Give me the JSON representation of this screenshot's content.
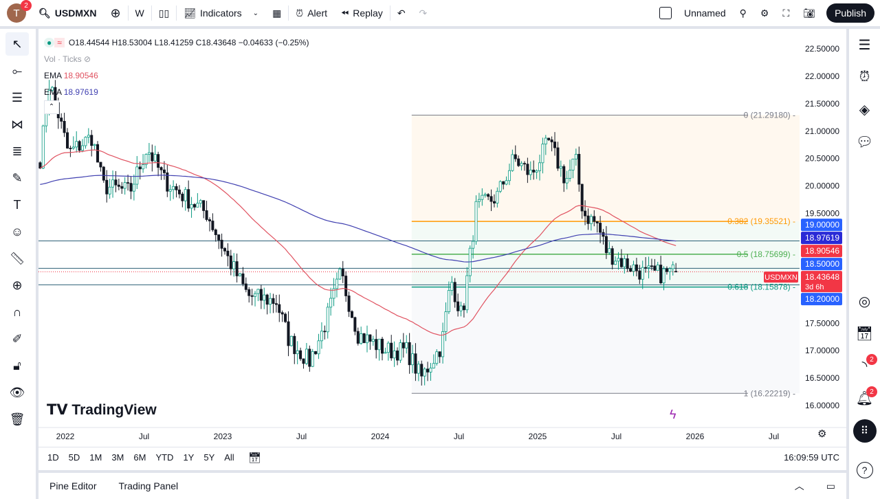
{
  "topbar": {
    "avatar_letter": "T",
    "avatar_badge": "2",
    "symbol": "USDMXN",
    "interval": "W",
    "indicators": "Indicators",
    "alert": "Alert",
    "replay": "Replay",
    "layout_name": "Unnamed",
    "publish": "Publish"
  },
  "legend": {
    "ohlc": "O18.44544 H18.53004 L18.41259 C18.43648 −0.04633 (−0.25%)",
    "vol": "Vol · Ticks",
    "ema1_label": "EMA",
    "ema1_value": "18.90546",
    "ema2_label": "EMA",
    "ema2_value": "18.97619"
  },
  "colors": {
    "up": "#089981",
    "down": "#131722",
    "ema_fast": "#e05260",
    "ema_slow": "#3f3fb0",
    "fib_0382": "#ff9800",
    "fib_05": "#4caf50",
    "fib_0618": "#089981"
  },
  "price_axis": {
    "ticks": [
      "22.50000",
      "22.00000",
      "21.50000",
      "21.00000",
      "20.50000",
      "20.00000",
      "19.50000",
      "17.50000",
      "17.00000",
      "16.50000",
      "16.00000"
    ],
    "labels": [
      {
        "text": "19.00000",
        "price": 19.0,
        "color": "#2962ff"
      },
      {
        "text": "18.97619",
        "price": 18.97619,
        "color": "#2a2ad6"
      },
      {
        "text": "18.90546",
        "price": 18.90546,
        "color": "#f23645"
      },
      {
        "text": "18.50000",
        "price": 18.5,
        "color": "#2962ff"
      },
      {
        "text": "18.43648",
        "price": 18.43648,
        "color": "#f23645",
        "sub": "3d 6h"
      },
      {
        "text": "18.20000",
        "price": 18.2,
        "color": "#2962ff"
      }
    ],
    "symbol_tag": "USDMXN"
  },
  "fib": {
    "levels": [
      {
        "label": "0 (21.29180)",
        "price": 21.2918,
        "color": "#787b86"
      },
      {
        "label": "0.382 (19.35521)",
        "price": 19.35521,
        "color": "#ff9800"
      },
      {
        "label": "0.5 (18.75699)",
        "price": 18.75699,
        "color": "#4caf50"
      },
      {
        "label": "0.618 (18.15878)",
        "price": 18.15878,
        "color": "#089981"
      },
      {
        "label": "1 (16.22219)",
        "price": 16.22219,
        "color": "#787b86"
      }
    ],
    "start": 2024.2
  },
  "time_axis": [
    {
      "t": "2022",
      "v": 2022
    },
    {
      "t": "Jul",
      "v": 2022.5
    },
    {
      "t": "2023",
      "v": 2023
    },
    {
      "t": "Jul",
      "v": 2023.5
    },
    {
      "t": "2024",
      "v": 2024
    },
    {
      "t": "Jul",
      "v": 2024.5
    },
    {
      "t": "2025",
      "v": 2025
    },
    {
      "t": "Jul",
      "v": 2025.5
    },
    {
      "t": "2026",
      "v": 2026
    },
    {
      "t": "Jul",
      "v": 2026.5
    }
  ],
  "ranges": [
    "1D",
    "5D",
    "1M",
    "3M",
    "6M",
    "YTD",
    "1Y",
    "5Y",
    "All"
  ],
  "clock": "16:09:59 UTC",
  "bottom_tabs": [
    "Pine Editor",
    "Trading Panel"
  ],
  "watermark": "TradingView",
  "right_badges": {
    "ideas": "2",
    "alerts": "2"
  },
  "chart_data": {
    "type": "candlestick",
    "symbol": "USDMXN",
    "interval": "W",
    "path": [
      [
        2021.84,
        20.5
      ],
      [
        2021.9,
        21.9
      ],
      [
        2022.02,
        20.6
      ],
      [
        2022.17,
        20.9
      ],
      [
        2022.24,
        20.0
      ],
      [
        2022.41,
        19.9
      ],
      [
        2022.52,
        20.7
      ],
      [
        2022.63,
        20.1
      ],
      [
        2022.76,
        19.8
      ],
      [
        2022.9,
        19.5
      ],
      [
        2023.03,
        18.7
      ],
      [
        2023.16,
        18.0
      ],
      [
        2023.34,
        17.9
      ],
      [
        2023.42,
        17.2
      ],
      [
        2023.55,
        16.8
      ],
      [
        2023.64,
        17.4
      ],
      [
        2023.75,
        18.4
      ],
      [
        2023.86,
        17.3
      ],
      [
        2024.04,
        17.0
      ],
      [
        2024.17,
        17.0
      ],
      [
        2024.26,
        16.5
      ],
      [
        2024.39,
        17.1
      ],
      [
        2024.45,
        18.3
      ],
      [
        2024.52,
        17.6
      ],
      [
        2024.61,
        19.6
      ],
      [
        2024.74,
        19.8
      ],
      [
        2024.85,
        20.5
      ],
      [
        2024.96,
        20.2
      ],
      [
        2025.07,
        20.8
      ],
      [
        2025.18,
        20.1
      ],
      [
        2025.24,
        20.5
      ],
      [
        2025.29,
        19.5
      ],
      [
        2025.38,
        19.3
      ],
      [
        2025.44,
        18.8
      ],
      [
        2025.55,
        18.6
      ],
      [
        2025.68,
        18.4
      ],
      [
        2025.81,
        18.4
      ],
      [
        2025.88,
        18.43648
      ]
    ],
    "ylim": [
      16.0,
      22.5
    ]
  }
}
